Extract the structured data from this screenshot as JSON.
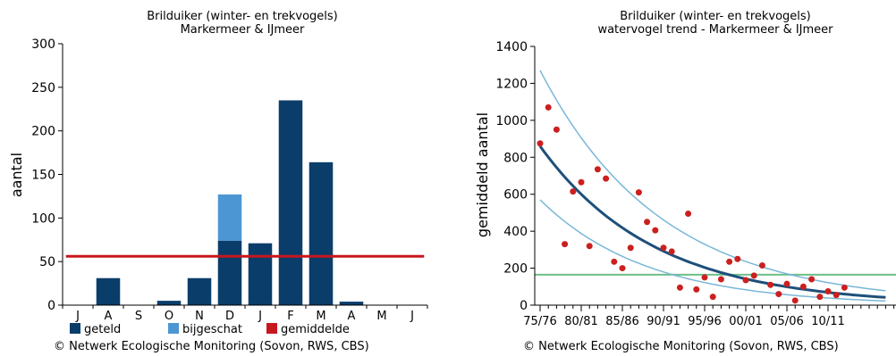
{
  "colors": {
    "geteld": "#0b3d6b",
    "bijgeschat": "#4d96d4",
    "gemiddelde": "#c8161d",
    "trend": "#1e4f7a",
    "ci": "#79b7d8",
    "reference": "#6dbf88",
    "points": "#cc1f1f"
  },
  "chart_data": [
    {
      "type": "bar",
      "title": "Brilduiker (winter- en trekvogels)",
      "subtitle": "Markermeer & IJmeer",
      "ylabel": "aantal",
      "xlabel": "",
      "ylim": [
        0,
        300
      ],
      "yticks": [
        0,
        50,
        100,
        150,
        200,
        250,
        300
      ],
      "categories": [
        "J",
        "A",
        "S",
        "O",
        "N",
        "D",
        "J",
        "F",
        "M",
        "A",
        "M",
        "J"
      ],
      "series": [
        {
          "name": "geteld",
          "values": [
            0,
            31,
            0,
            5,
            31,
            74,
            71,
            235,
            164,
            4,
            0,
            0
          ]
        },
        {
          "name": "bijgeschat",
          "values": [
            0,
            0,
            0,
            0,
            0,
            53,
            0,
            0,
            0,
            0,
            0,
            0
          ]
        },
        {
          "name": "gemiddelde",
          "values": [
            56,
            56,
            56,
            56,
            56,
            56,
            56,
            56,
            56,
            56,
            56,
            56
          ]
        }
      ],
      "legend_placement": "bottom",
      "grid": false
    },
    {
      "type": "scatter",
      "title": "Brilduiker (winter- en trekvogels)",
      "subtitle": "watervogel trend - Markermeer & IJmeer",
      "ylabel": "gemiddeld aantal",
      "xlabel": "",
      "ylim": [
        0,
        1400
      ],
      "yticks": [
        0,
        200,
        400,
        600,
        800,
        1000,
        1200,
        1400
      ],
      "xlim": [
        "75/76",
        "13/14"
      ],
      "xticklabels": [
        "75/76",
        "80/81",
        "85/86",
        "90/91",
        "95/96",
        "00/01",
        "05/06",
        "10/11"
      ],
      "series": [
        {
          "name": "",
          "kind": "points",
          "x": [
            "75/76",
            "76/77",
            "77/78",
            "78/79",
            "79/80",
            "80/81",
            "81/82",
            "82/83",
            "83/84",
            "84/85",
            "85/86",
            "86/87",
            "87/88",
            "88/89",
            "89/90",
            "90/91",
            "91/92",
            "92/93",
            "93/94",
            "94/95",
            "95/96",
            "96/97",
            "97/98",
            "98/99",
            "99/00",
            "00/01",
            "01/02",
            "02/03",
            "03/04",
            "04/05",
            "05/06",
            "06/07",
            "07/08",
            "08/09",
            "09/10",
            "10/11",
            "11/12",
            "12/13"
          ],
          "y": [
            875,
            1070,
            950,
            330,
            615,
            665,
            320,
            735,
            685,
            235,
            200,
            310,
            610,
            450,
            405,
            310,
            290,
            95,
            495,
            85,
            150,
            45,
            140,
            235,
            250,
            135,
            160,
            215,
            110,
            60,
            115,
            25,
            100,
            140,
            45,
            75,
            55,
            95
          ]
        },
        {
          "name": "",
          "kind": "trend",
          "curve": "exponential",
          "start": 860,
          "rate": 0.072,
          "floor": 0
        },
        {
          "name": "",
          "kind": "upper-ci",
          "curve": "exponential",
          "start": 1270,
          "rate": 0.068,
          "floor": 5
        },
        {
          "name": "",
          "kind": "lower-ci",
          "curve": "exponential",
          "start": 570,
          "rate": 0.077,
          "floor": 0
        },
        {
          "name": "",
          "kind": "reference",
          "value": 165
        }
      ],
      "grid": false
    }
  ],
  "legend": [
    {
      "label": "geteld",
      "color_key": "geteld"
    },
    {
      "label": "bijgeschat",
      "color_key": "bijgeschat"
    },
    {
      "label": "gemiddelde",
      "color_key": "gemiddelde"
    }
  ],
  "copyright_left": "© Netwerk Ecologische Monitoring (Sovon, RWS, CBS)",
  "copyright_right": "© Netwerk Ecologische Monitoring (Sovon, RWS, CBS)"
}
